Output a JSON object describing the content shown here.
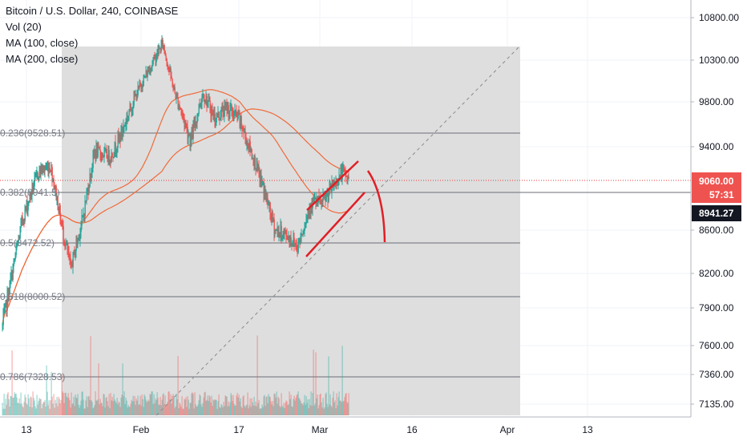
{
  "legend": {
    "title": "Bitcoin / U.S. Dollar, 240, COINBASE",
    "vol": "Vol (20)",
    "ma1": "MA (100, close)",
    "ma2": "MA (200, close)"
  },
  "colors": {
    "up": "#26a69a",
    "down": "#ef5350",
    "ma": "#f06a3a",
    "drawing": "#e01f26",
    "shade": "#dedede",
    "price_line": "#e53935"
  },
  "chart_data": {
    "type": "candlestick",
    "title": "Bitcoin / U.S. Dollar, 240, COINBASE",
    "y_axis_labels": [
      "10800.00",
      "10300.00",
      "9800.00",
      "9400.00",
      "8600.00",
      "8200.00",
      "7900.00",
      "7600.00",
      "7360.00",
      "7135.00"
    ],
    "x_axis_labels": [
      "13",
      "Feb",
      "17",
      "Mar",
      "16",
      "Apr",
      "13"
    ],
    "fib_levels": [
      {
        "label": "0.236(9528.51)",
        "price": 9528.51
      },
      {
        "label": "0.382(8941.5)",
        "price": 8941.5
      },
      {
        "label": "0.5(8472.52)",
        "price": 8472.52
      },
      {
        "label": "0.618(8000.52)",
        "price": 8000.52
      },
      {
        "label": "0.786(7328.53)",
        "price": 7328.53
      }
    ],
    "current_price": "9060.00",
    "countdown": "57:31",
    "level_marker": "8941.27",
    "series": [
      {
        "name": "MA (100, close)"
      },
      {
        "name": "MA (200, close)"
      }
    ],
    "key_points": {
      "start_price": 7750,
      "jan_high": 9200,
      "late_jan_low": 8250,
      "feb_high": 10500,
      "mar_low": 8450,
      "last_close": 9060
    }
  }
}
